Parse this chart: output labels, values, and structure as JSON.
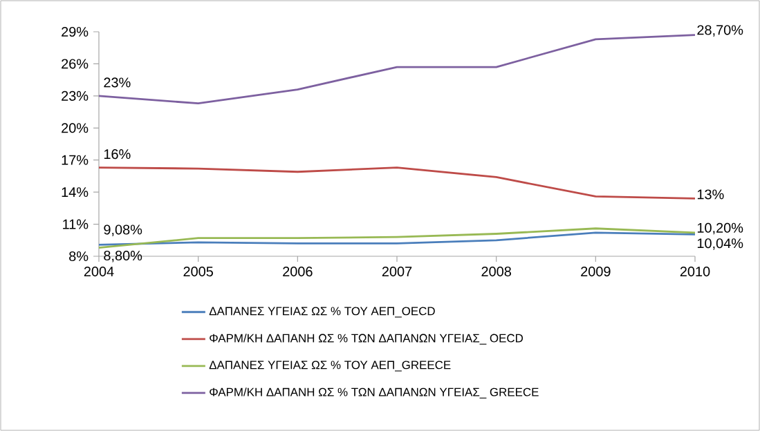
{
  "chart_data": {
    "type": "line",
    "x": [
      2004,
      2005,
      2006,
      2007,
      2008,
      2009,
      2010
    ],
    "xlim": [
      2004,
      2010
    ],
    "xticks": [
      2004,
      2005,
      2006,
      2007,
      2008,
      2009,
      2010
    ],
    "ylim": [
      8,
      29
    ],
    "yticks": [
      {
        "value": 8,
        "label": "8%"
      },
      {
        "value": 11,
        "label": "11%"
      },
      {
        "value": 14,
        "label": "14%"
      },
      {
        "value": 17,
        "label": "17%"
      },
      {
        "value": 20,
        "label": "20%"
      },
      {
        "value": 23,
        "label": "23%"
      },
      {
        "value": 26,
        "label": "26%"
      },
      {
        "value": 29,
        "label": "29%"
      }
    ],
    "grid": false,
    "legend": "bottom",
    "marker": "none",
    "line_style": "solid",
    "series": [
      {
        "name": "ΔΑΠΑΝΕΣ ΥΓΕΙΑΣ ΩΣ % ΤΟΥ ΑΕΠ_OECD",
        "color": "#4a7ebb",
        "values": [
          9.08,
          9.3,
          9.2,
          9.2,
          9.5,
          10.2,
          10.04
        ],
        "value_labels": [
          "9,08%",
          null,
          null,
          null,
          null,
          null,
          "10,04%"
        ]
      },
      {
        "name": "ΦΑΡΜ/ΚΗ ΔΑΠΑΝΗ ΩΣ % ΤΩΝ ΔΑΠΑΝΩΝ ΥΓΕΙΑΣ_ OECD",
        "color": "#be4b48",
        "values": [
          16.3,
          16.2,
          15.9,
          16.3,
          15.4,
          13.6,
          13.4
        ],
        "value_labels": [
          "16%",
          null,
          null,
          null,
          null,
          null,
          "13%"
        ]
      },
      {
        "name": "ΔΑΠΑΝΕΣ ΥΓΕΙΑΣ ΩΣ % ΤΟΥ ΑΕΠ_GREECE",
        "color": "#98b954",
        "values": [
          8.8,
          9.7,
          9.7,
          9.8,
          10.1,
          10.6,
          10.2
        ],
        "value_labels": [
          "8,80%",
          null,
          null,
          null,
          null,
          null,
          "10,20%"
        ]
      },
      {
        "name": "ΦΑΡΜ/ΚΗ ΔΑΠΑΝΗ ΩΣ % ΤΩΝ ΔΑΠΑΝΩΝ ΥΓΕΙΑΣ_ GREECE",
        "color": "#7d60a0",
        "values": [
          23,
          22.3,
          23.6,
          25.7,
          25.7,
          28.3,
          28.7
        ],
        "value_labels": [
          "23%",
          null,
          null,
          null,
          null,
          null,
          "28,70%"
        ]
      }
    ]
  }
}
